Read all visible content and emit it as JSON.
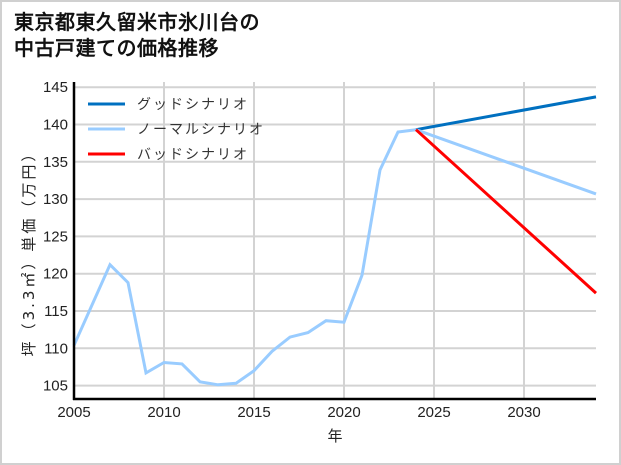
{
  "title_line1": "東京都東久留米市氷川台の",
  "title_line2": "中古戸建ての価格推移",
  "chart_data": {
    "type": "line",
    "title": "東京都東久留米市氷川台の中古戸建ての価格推移",
    "xlabel": "年",
    "ylabel": "坪（3.3㎡）単価（万円）",
    "xlim": [
      2005,
      2034
    ],
    "ylim": [
      103.2,
      145.7
    ],
    "x_ticks": [
      2005,
      2010,
      2015,
      2020,
      2025,
      2030
    ],
    "y_ticks": [
      105,
      110,
      115,
      120,
      125,
      130,
      135,
      140,
      145
    ],
    "grid": true,
    "legend_position": "upper left",
    "series": [
      {
        "name": "ノーマルシナリオ (実績)",
        "color": "#99ccff",
        "x": [
          2005,
          2006,
          2007,
          2008,
          2009,
          2010,
          2011,
          2012,
          2013,
          2014,
          2015,
          2016,
          2017,
          2018,
          2019,
          2020,
          2021,
          2022,
          2023,
          2024
        ],
        "values": [
          110.4,
          115.8,
          121.2,
          118.8,
          106.7,
          108.1,
          107.9,
          105.5,
          105.1,
          105.3,
          107.0,
          109.6,
          111.5,
          112.1,
          113.7,
          113.5,
          119.8,
          133.9,
          139.0,
          139.3
        ]
      },
      {
        "name": "グッドシナリオ",
        "color": "#0070c0",
        "x": [
          2024,
          2034
        ],
        "values": [
          139.3,
          143.7
        ]
      },
      {
        "name": "ノーマルシナリオ",
        "color": "#99ccff",
        "x": [
          2024,
          2034
        ],
        "values": [
          139.3,
          130.7
        ]
      },
      {
        "name": "バッドシナリオ",
        "color": "#ff0000",
        "x": [
          2024,
          2034
        ],
        "values": [
          139.3,
          117.4
        ]
      }
    ],
    "legend": [
      {
        "label": "グッドシナリオ",
        "color": "#0070c0"
      },
      {
        "label": "ノーマルシナリオ",
        "color": "#99ccff"
      },
      {
        "label": "バッドシナリオ",
        "color": "#ff0000"
      }
    ]
  }
}
